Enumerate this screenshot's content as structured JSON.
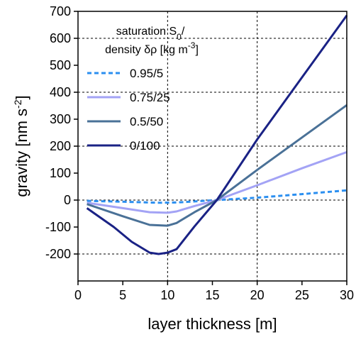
{
  "chart_data": {
    "type": "line",
    "xlabel": "layer thickness [m]",
    "ylabel": "gravity [nm s",
    "ylabel_sup": "-2",
    "ylabel_end": "]",
    "xlim": [
      0,
      30
    ],
    "ylim": [
      -300,
      700
    ],
    "x_ticks": [
      0,
      5,
      10,
      15,
      20,
      25,
      30
    ],
    "y_ticks": [
      -200,
      -100,
      0,
      100,
      200,
      300,
      400,
      500,
      600,
      700
    ],
    "grid": "dashed lines at x=10, x=20, y=-200, y=0, y=200, y=400, y=600",
    "grid_x": [
      10,
      20
    ],
    "grid_y": [
      -200,
      0,
      200,
      400,
      600
    ],
    "legend": {
      "position": "top-left",
      "title_line1": "saturation S",
      "title_line1_sub": "0",
      "title_line1_end": "/",
      "title_line2": "density δρ [kg m",
      "title_line2_sup": "-3",
      "title_line2_end": "]"
    },
    "series": [
      {
        "name": "0.95/5",
        "color": "#2b8ff0",
        "style": "dashed",
        "points": [
          [
            1,
            -3
          ],
          [
            5,
            -6
          ],
          [
            9,
            -10
          ],
          [
            11,
            -9
          ],
          [
            15.5,
            0
          ],
          [
            20,
            9
          ],
          [
            25,
            22
          ],
          [
            30,
            36
          ]
        ]
      },
      {
        "name": "0.75/25",
        "color": "#a3a3f5",
        "style": "solid",
        "points": [
          [
            1,
            -10
          ],
          [
            5,
            -30
          ],
          [
            8,
            -45
          ],
          [
            10,
            -47
          ],
          [
            11,
            -42
          ],
          [
            13,
            -22
          ],
          [
            15.5,
            0
          ],
          [
            20,
            55
          ],
          [
            25,
            118
          ],
          [
            30,
            178
          ]
        ]
      },
      {
        "name": "0.5/50",
        "color": "#4a7197",
        "style": "solid",
        "points": [
          [
            1,
            -15
          ],
          [
            5,
            -60
          ],
          [
            8,
            -92
          ],
          [
            10,
            -95
          ],
          [
            11,
            -85
          ],
          [
            13,
            -45
          ],
          [
            15.5,
            0
          ],
          [
            20,
            112
          ],
          [
            25,
            232
          ],
          [
            30,
            352
          ]
        ]
      },
      {
        "name": "0/100",
        "color": "#1a2285",
        "style": "solid",
        "points": [
          [
            1,
            -30
          ],
          [
            4,
            -100
          ],
          [
            6,
            -155
          ],
          [
            8,
            -195
          ],
          [
            9,
            -200
          ],
          [
            10,
            -195
          ],
          [
            11,
            -182
          ],
          [
            13,
            -98
          ],
          [
            15.5,
            0
          ],
          [
            20,
            225
          ],
          [
            25,
            455
          ],
          [
            30,
            685
          ]
        ]
      }
    ]
  }
}
